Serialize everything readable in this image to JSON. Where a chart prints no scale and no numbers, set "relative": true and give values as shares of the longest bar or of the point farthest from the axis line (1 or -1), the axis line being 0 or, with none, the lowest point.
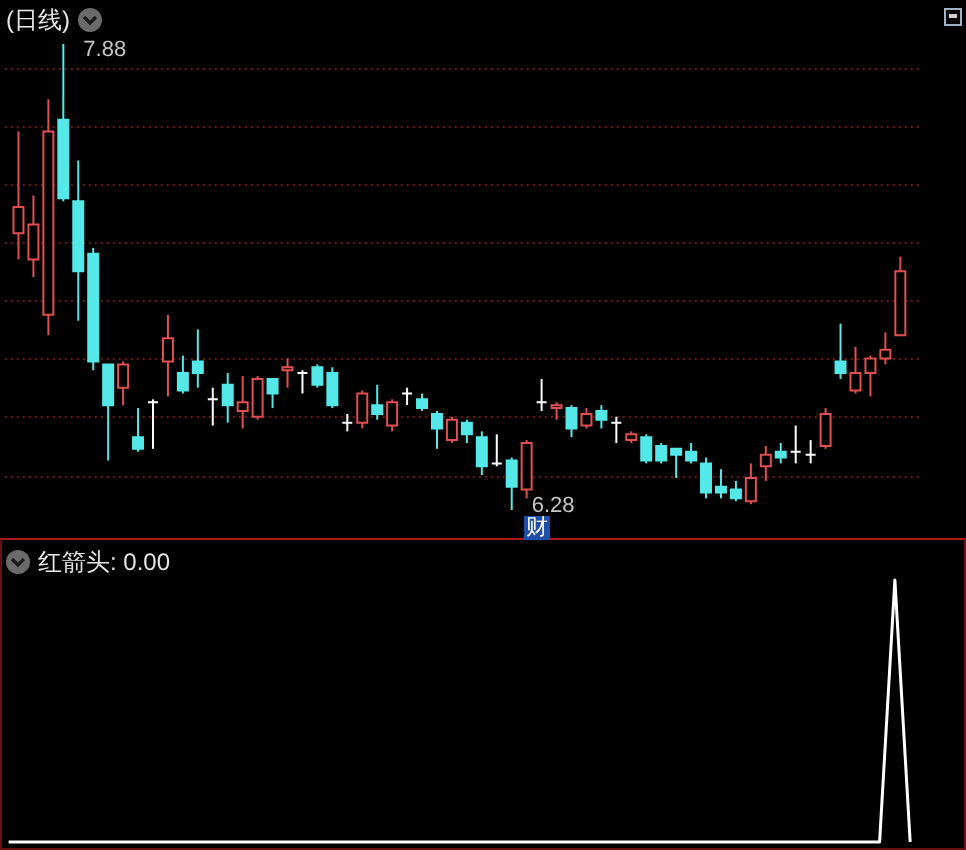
{
  "chart_data": [
    {
      "type": "candlestick",
      "title": "(日线)",
      "categories": [
        null,
        null,
        null,
        null,
        null,
        null,
        null,
        null,
        null,
        null,
        null,
        null,
        null,
        null,
        null,
        null,
        null,
        null,
        null,
        null,
        null,
        null,
        null,
        null,
        null,
        null,
        null,
        null,
        null,
        null,
        null,
        null,
        null,
        null,
        null,
        null,
        null,
        null,
        null,
        null,
        null,
        null,
        null,
        null,
        null,
        null,
        null,
        null,
        null,
        null,
        null,
        null,
        null,
        null,
        null,
        null,
        null,
        null,
        null,
        null
      ],
      "ohlc": [
        [
          7.23,
          7.58,
          7.14,
          7.32
        ],
        [
          7.14,
          7.36,
          7.08,
          7.26
        ],
        [
          6.95,
          7.69,
          6.88,
          7.58
        ],
        [
          7.62,
          7.88,
          7.34,
          7.35
        ],
        [
          7.34,
          7.48,
          6.93,
          7.1
        ],
        [
          7.16,
          7.18,
          6.76,
          6.79
        ],
        [
          6.78,
          6.78,
          6.45,
          6.64
        ],
        [
          6.7,
          6.79,
          6.64,
          6.78
        ],
        [
          6.53,
          6.63,
          6.48,
          6.49
        ],
        [
          6.65,
          6.66,
          6.49,
          6.65
        ],
        [
          6.79,
          6.95,
          6.67,
          6.87
        ],
        [
          6.75,
          6.81,
          6.68,
          6.69
        ],
        [
          6.79,
          6.9,
          6.7,
          6.75
        ],
        [
          6.66,
          6.7,
          6.57,
          6.66
        ],
        [
          6.71,
          6.75,
          6.58,
          6.64
        ],
        [
          6.62,
          6.74,
          6.56,
          6.65
        ],
        [
          6.6,
          6.74,
          6.59,
          6.73
        ],
        [
          6.73,
          6.73,
          6.63,
          6.68
        ],
        [
          6.76,
          6.8,
          6.7,
          6.77
        ],
        [
          6.75,
          6.76,
          6.68,
          6.75
        ],
        [
          6.77,
          6.78,
          6.7,
          6.71
        ],
        [
          6.75,
          6.77,
          6.63,
          6.64
        ],
        [
          6.58,
          6.61,
          6.55,
          6.58
        ],
        [
          6.58,
          6.69,
          6.56,
          6.68
        ],
        [
          6.64,
          6.71,
          6.59,
          6.61
        ],
        [
          6.57,
          6.66,
          6.55,
          6.65
        ],
        [
          6.68,
          6.7,
          6.64,
          6.68
        ],
        [
          6.66,
          6.68,
          6.62,
          6.63
        ],
        [
          6.61,
          6.62,
          6.49,
          6.56
        ],
        [
          6.52,
          6.6,
          6.51,
          6.59
        ],
        [
          6.58,
          6.59,
          6.51,
          6.54
        ],
        [
          6.53,
          6.55,
          6.4,
          6.43
        ],
        [
          6.44,
          6.54,
          6.43,
          6.44
        ],
        [
          6.45,
          6.46,
          6.28,
          6.36
        ],
        [
          6.35,
          6.52,
          6.32,
          6.51
        ],
        [
          6.65,
          6.73,
          6.62,
          6.65
        ],
        [
          6.63,
          6.65,
          6.59,
          6.64
        ],
        [
          6.63,
          6.64,
          6.53,
          6.56
        ],
        [
          6.57,
          6.63,
          6.56,
          6.61
        ],
        [
          6.62,
          6.64,
          6.56,
          6.59
        ],
        [
          6.58,
          6.6,
          6.51,
          6.58
        ],
        [
          6.52,
          6.55,
          6.51,
          6.54
        ],
        [
          6.53,
          6.54,
          6.44,
          6.45
        ],
        [
          6.5,
          6.51,
          6.44,
          6.45
        ],
        [
          6.49,
          6.49,
          6.39,
          6.47
        ],
        [
          6.48,
          6.51,
          6.44,
          6.45
        ],
        [
          6.44,
          6.46,
          6.32,
          6.34
        ],
        [
          6.36,
          6.42,
          6.32,
          6.34
        ],
        [
          6.35,
          6.38,
          6.31,
          6.32
        ],
        [
          6.31,
          6.44,
          6.3,
          6.39
        ],
        [
          6.43,
          6.5,
          6.38,
          6.47
        ],
        [
          6.48,
          6.51,
          6.44,
          6.46
        ],
        [
          6.48,
          6.57,
          6.44,
          6.48
        ],
        [
          6.47,
          6.52,
          6.44,
          6.47
        ],
        [
          6.5,
          6.63,
          6.49,
          6.61
        ],
        [
          6.79,
          6.92,
          6.73,
          6.75
        ],
        [
          6.69,
          6.84,
          6.68,
          6.75
        ],
        [
          6.75,
          6.81,
          6.67,
          6.8
        ],
        [
          6.8,
          6.89,
          6.78,
          6.83
        ],
        [
          6.88,
          7.15,
          6.88,
          7.1
        ]
      ],
      "colors": [
        "#e05050",
        "#e05050",
        "#e05050",
        "#54e8e8",
        "#54e8e8",
        "#54e8e8",
        "#54e8e8",
        "#e05050",
        "#54e8e8",
        "#ffffff",
        "#e05050",
        "#54e8e8",
        "#54e8e8",
        "#ffffff",
        "#54e8e8",
        "#e05050",
        "#e05050",
        "#54e8e8",
        "#e05050",
        "#ffffff",
        "#54e8e8",
        "#54e8e8",
        "#ffffff",
        "#e05050",
        "#54e8e8",
        "#e05050",
        "#ffffff",
        "#54e8e8",
        "#54e8e8",
        "#e05050",
        "#54e8e8",
        "#54e8e8",
        "#ffffff",
        "#54e8e8",
        "#e05050",
        "#ffffff",
        "#e05050",
        "#54e8e8",
        "#e05050",
        "#54e8e8",
        "#ffffff",
        "#e05050",
        "#54e8e8",
        "#54e8e8",
        "#54e8e8",
        "#54e8e8",
        "#54e8e8",
        "#54e8e8",
        "#54e8e8",
        "#e05050",
        "#e05050",
        "#54e8e8",
        "#ffffff",
        "#ffffff",
        "#e05050",
        "#54e8e8",
        "#e05050",
        "#e05050",
        "#e05050",
        "#e05050"
      ],
      "yticks": [
        {
          "value": 7.8,
          "label": null
        },
        {
          "value": 7.6,
          "label": null
        },
        {
          "value": 7.4,
          "label": null
        },
        {
          "value": 7.2,
          "label": null
        },
        {
          "value": 7.0,
          "label": null
        },
        {
          "value": 6.8,
          "label": null
        },
        {
          "value": 6.6,
          "label": null
        },
        {
          "value": 6.4,
          "label": null
        }
      ],
      "grid": true,
      "annotations": [
        "7.88",
        "6.28",
        "财"
      ]
    },
    {
      "type": "line",
      "title": "红箭头: 0.00",
      "categories": [
        null,
        null,
        null,
        null,
        null,
        null,
        null,
        null,
        null,
        null,
        null,
        null,
        null,
        null,
        null,
        null,
        null,
        null,
        null,
        null,
        null,
        null,
        null,
        null,
        null,
        null,
        null,
        null,
        null,
        null,
        null,
        null,
        null,
        null,
        null,
        null,
        null,
        null,
        null,
        null,
        null,
        null,
        null,
        null,
        null,
        null,
        null,
        null,
        null,
        null,
        null,
        null,
        null,
        null,
        null,
        null,
        null,
        null,
        null,
        null
      ],
      "series": [
        {
          "color": "#ffffff",
          "values": [
            0,
            0,
            0,
            0,
            0,
            0,
            0,
            0,
            0,
            0,
            0,
            0,
            0,
            0,
            0,
            0,
            0,
            0,
            0,
            0,
            0,
            0,
            0,
            0,
            0,
            0,
            0,
            0,
            0,
            0,
            0,
            0,
            0,
            0,
            0,
            0,
            0,
            0,
            0,
            0,
            0,
            0,
            0,
            0,
            0,
            0,
            0,
            0,
            0,
            0,
            0,
            0,
            0,
            0,
            0,
            0,
            0,
            0,
            1,
            0
          ]
        }
      ],
      "relative": true
    }
  ]
}
